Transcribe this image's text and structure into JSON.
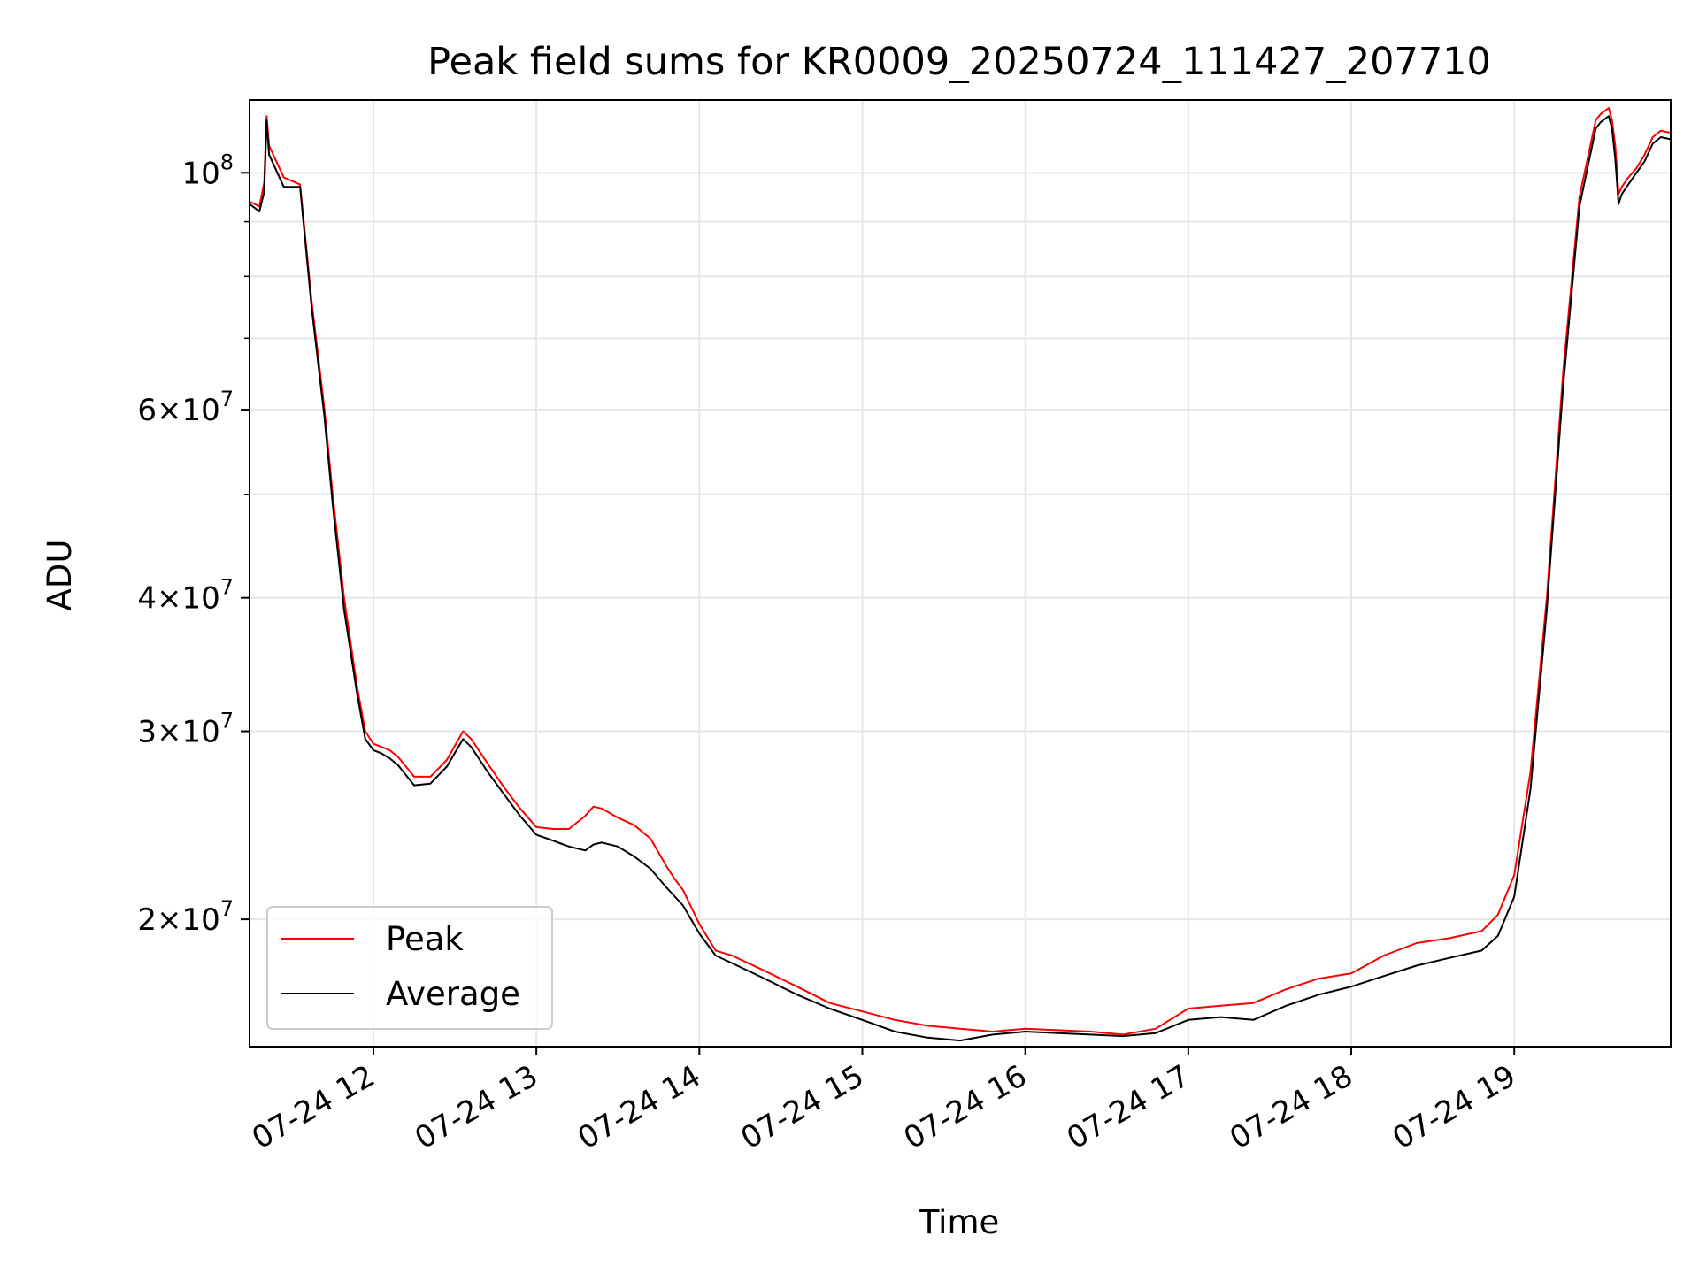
{
  "chart_data": {
    "type": "line",
    "title": "Peak field sums for KR0009_20250724_111427_207710",
    "xlabel": "Time",
    "ylabel": "ADU",
    "x_axis": "time (hours on 2025-07-24)",
    "y_scale": "log",
    "xlim": [
      11.24,
      19.96
    ],
    "ylim": [
      15200000,
      117000000
    ],
    "grid": true,
    "legend_position": "lower-left",
    "x_ticks": [
      {
        "value": 12,
        "label": "07-24 12"
      },
      {
        "value": 13,
        "label": "07-24 13"
      },
      {
        "value": 14,
        "label": "07-24 14"
      },
      {
        "value": 15,
        "label": "07-24 15"
      },
      {
        "value": 16,
        "label": "07-24 16"
      },
      {
        "value": 17,
        "label": "07-24 17"
      },
      {
        "value": 18,
        "label": "07-24 18"
      },
      {
        "value": 19,
        "label": "07-24 19"
      }
    ],
    "y_ticks": [
      {
        "value": 20000000,
        "mantissa": "2",
        "exponent": "7"
      },
      {
        "value": 30000000,
        "mantissa": "3",
        "exponent": "7"
      },
      {
        "value": 40000000,
        "mantissa": "4",
        "exponent": "7"
      },
      {
        "value": 60000000,
        "mantissa": "6",
        "exponent": "7"
      },
      {
        "value": 100000000,
        "mantissa": "10",
        "exponent": "8"
      }
    ],
    "series": [
      {
        "name": "Peak",
        "color": "#ff0000",
        "x": [
          11.24,
          11.3,
          11.33,
          11.345,
          11.36,
          11.45,
          11.55,
          11.62,
          11.7,
          11.75,
          11.82,
          11.9,
          11.95,
          12.0,
          12.05,
          12.1,
          12.15,
          12.25,
          12.35,
          12.45,
          12.55,
          12.6,
          12.7,
          12.8,
          12.9,
          13.0,
          13.1,
          13.2,
          13.3,
          13.35,
          13.4,
          13.5,
          13.6,
          13.7,
          13.8,
          13.85,
          13.9,
          14.0,
          14.1,
          14.2,
          14.4,
          14.6,
          14.8,
          15.0,
          15.2,
          15.4,
          15.6,
          15.8,
          16.0,
          16.2,
          16.4,
          16.6,
          16.8,
          17.0,
          17.2,
          17.4,
          17.6,
          17.8,
          18.0,
          18.2,
          18.4,
          18.6,
          18.8,
          18.9,
          19.0,
          19.1,
          19.2,
          19.3,
          19.4,
          19.5,
          19.53,
          19.58,
          19.6,
          19.62,
          19.64,
          19.66,
          19.7,
          19.75,
          19.8,
          19.85,
          19.9,
          19.96
        ],
        "y": [
          94000000,
          93000000,
          98000000,
          113000000,
          106000000,
          99000000,
          97500000,
          76000000,
          60000000,
          50000000,
          40000000,
          33000000,
          30000000,
          29200000,
          29000000,
          28800000,
          28400000,
          27200000,
          27200000,
          28200000,
          30000000,
          29500000,
          28000000,
          26600000,
          25400000,
          24400000,
          24300000,
          24300000,
          25000000,
          25500000,
          25400000,
          24900000,
          24500000,
          23800000,
          22400000,
          21800000,
          21300000,
          19800000,
          18700000,
          18500000,
          17900000,
          17300000,
          16700000,
          16400000,
          16100000,
          15900000,
          15800000,
          15700000,
          15800000,
          15750000,
          15700000,
          15600000,
          15800000,
          16500000,
          16600000,
          16700000,
          17200000,
          17600000,
          17800000,
          18500000,
          19000000,
          19200000,
          19500000,
          20200000,
          22000000,
          27500000,
          40000000,
          65000000,
          95000000,
          112000000,
          113500000,
          115000000,
          112000000,
          106000000,
          95500000,
          97000000,
          99000000,
          101000000,
          104000000,
          108000000,
          109500000,
          109000000
        ]
      },
      {
        "name": "Average",
        "color": "#000000",
        "x": [
          11.24,
          11.3,
          11.33,
          11.345,
          11.36,
          11.45,
          11.55,
          11.62,
          11.7,
          11.75,
          11.82,
          11.9,
          11.95,
          12.0,
          12.05,
          12.1,
          12.15,
          12.25,
          12.35,
          12.45,
          12.55,
          12.6,
          12.7,
          12.8,
          12.9,
          13.0,
          13.1,
          13.2,
          13.3,
          13.35,
          13.4,
          13.5,
          13.6,
          13.7,
          13.8,
          13.85,
          13.9,
          14.0,
          14.1,
          14.2,
          14.4,
          14.6,
          14.8,
          15.0,
          15.2,
          15.4,
          15.6,
          15.8,
          16.0,
          16.2,
          16.4,
          16.6,
          16.8,
          17.0,
          17.2,
          17.4,
          17.6,
          17.8,
          18.0,
          18.2,
          18.4,
          18.6,
          18.8,
          18.9,
          19.0,
          19.1,
          19.2,
          19.3,
          19.4,
          19.5,
          19.53,
          19.58,
          19.6,
          19.62,
          19.64,
          19.66,
          19.7,
          19.75,
          19.8,
          19.85,
          19.9,
          19.96
        ],
        "y": [
          93500000,
          92000000,
          96000000,
          112000000,
          104000000,
          97000000,
          97000000,
          75000000,
          59000000,
          49000000,
          39000000,
          32500000,
          29500000,
          28800000,
          28600000,
          28300000,
          27900000,
          26700000,
          26800000,
          27800000,
          29500000,
          29000000,
          27500000,
          26200000,
          25000000,
          24000000,
          23700000,
          23400000,
          23200000,
          23500000,
          23600000,
          23400000,
          22900000,
          22300000,
          21400000,
          21000000,
          20600000,
          19400000,
          18500000,
          18200000,
          17600000,
          17000000,
          16500000,
          16100000,
          15700000,
          15500000,
          15400000,
          15600000,
          15700000,
          15650000,
          15600000,
          15550000,
          15650000,
          16100000,
          16200000,
          16100000,
          16600000,
          17000000,
          17300000,
          17700000,
          18100000,
          18400000,
          18700000,
          19300000,
          21000000,
          26500000,
          39000000,
          63000000,
          93000000,
          110000000,
          111500000,
          113000000,
          110000000,
          103000000,
          93500000,
          95500000,
          97500000,
          100000000,
          102500000,
          106500000,
          108000000,
          107500000
        ]
      }
    ]
  }
}
